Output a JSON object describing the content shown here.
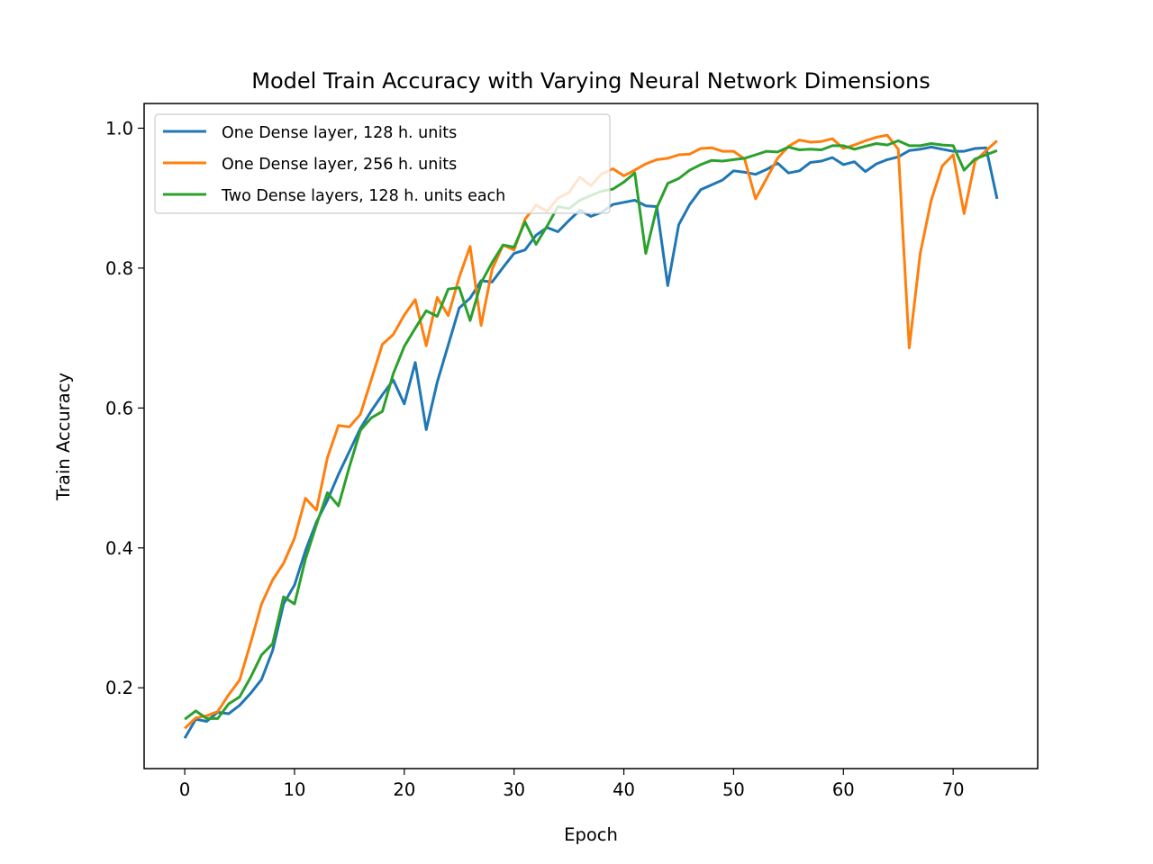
{
  "chart_data": {
    "type": "line",
    "title": "Model Train Accuracy with Varying Neural Network Dimensions",
    "xlabel": "Epoch",
    "ylabel": "Train Accuracy",
    "xlim": [
      -3.7,
      77.7
    ],
    "ylim": [
      0.0845,
      1.0353
    ],
    "xticks": [
      0,
      10,
      20,
      30,
      40,
      50,
      60,
      70
    ],
    "yticks": [
      0.2,
      0.4,
      0.6,
      0.8,
      1.0
    ],
    "xtick_labels": [
      "0",
      "10",
      "20",
      "30",
      "40",
      "50",
      "60",
      "70"
    ],
    "ytick_labels": [
      "0.2",
      "0.4",
      "0.6",
      "0.8",
      "1.0"
    ],
    "grid": false,
    "legend_position": "top-left",
    "series": [
      {
        "name": "One Dense layer, 128 h. units",
        "color": "#1f77b4",
        "values": [
          0.128,
          0.155,
          0.152,
          0.165,
          0.163,
          0.175,
          0.192,
          0.212,
          0.253,
          0.32,
          0.347,
          0.396,
          0.437,
          0.468,
          0.505,
          0.538,
          0.571,
          0.596,
          0.619,
          0.64,
          0.606,
          0.665,
          0.569,
          0.637,
          0.69,
          0.743,
          0.757,
          0.782,
          0.78,
          0.801,
          0.821,
          0.826,
          0.847,
          0.858,
          0.852,
          0.868,
          0.883,
          0.874,
          0.88,
          0.891,
          0.894,
          0.897,
          0.889,
          0.888,
          0.775,
          0.862,
          0.891,
          0.912,
          0.919,
          0.926,
          0.939,
          0.937,
          0.934,
          0.941,
          0.95,
          0.936,
          0.939,
          0.951,
          0.953,
          0.958,
          0.948,
          0.952,
          0.938,
          0.949,
          0.955,
          0.959,
          0.968,
          0.97,
          0.973,
          0.97,
          0.967,
          0.967,
          0.971,
          0.972,
          0.899
        ]
      },
      {
        "name": "One Dense layer, 256 h. units",
        "color": "#ff7f0e",
        "values": [
          0.142,
          0.157,
          0.16,
          0.166,
          0.19,
          0.211,
          0.264,
          0.32,
          0.354,
          0.378,
          0.414,
          0.471,
          0.454,
          0.529,
          0.575,
          0.573,
          0.591,
          0.641,
          0.691,
          0.705,
          0.733,
          0.755,
          0.689,
          0.758,
          0.732,
          0.787,
          0.831,
          0.718,
          0.798,
          0.833,
          0.826,
          0.87,
          0.89,
          0.881,
          0.9,
          0.908,
          0.93,
          0.918,
          0.935,
          0.942,
          0.932,
          0.94,
          0.949,
          0.955,
          0.957,
          0.962,
          0.963,
          0.971,
          0.972,
          0.967,
          0.967,
          0.956,
          0.899,
          0.928,
          0.957,
          0.974,
          0.983,
          0.98,
          0.981,
          0.985,
          0.971,
          0.976,
          0.982,
          0.987,
          0.99,
          0.97,
          0.686,
          0.821,
          0.897,
          0.946,
          0.962,
          0.878,
          0.953,
          0.968,
          0.982
        ]
      },
      {
        "name": "Two Dense layers, 128 h. units each",
        "color": "#2ca02c",
        "values": [
          0.155,
          0.167,
          0.156,
          0.156,
          0.177,
          0.187,
          0.215,
          0.247,
          0.263,
          0.33,
          0.32,
          0.384,
          0.433,
          0.479,
          0.46,
          0.516,
          0.568,
          0.586,
          0.595,
          0.649,
          0.688,
          0.714,
          0.739,
          0.731,
          0.77,
          0.772,
          0.725,
          0.779,
          0.808,
          0.833,
          0.83,
          0.866,
          0.834,
          0.86,
          0.888,
          0.885,
          0.897,
          0.904,
          0.91,
          0.913,
          0.923,
          0.936,
          0.821,
          0.886,
          0.921,
          0.928,
          0.94,
          0.948,
          0.954,
          0.953,
          0.955,
          0.957,
          0.962,
          0.967,
          0.966,
          0.973,
          0.969,
          0.97,
          0.969,
          0.975,
          0.975,
          0.97,
          0.974,
          0.978,
          0.976,
          0.982,
          0.975,
          0.975,
          0.978,
          0.976,
          0.975,
          0.94,
          0.956,
          0.962,
          0.968
        ]
      }
    ]
  }
}
